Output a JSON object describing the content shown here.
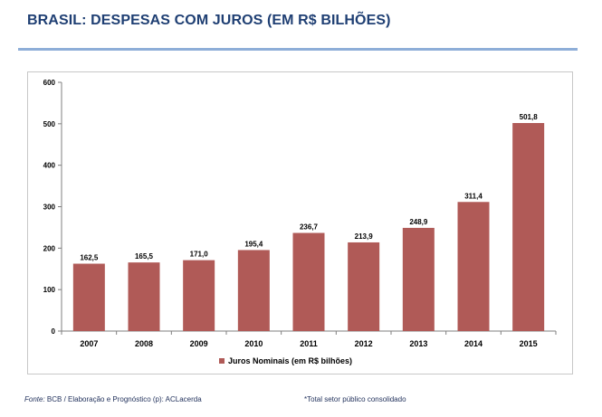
{
  "page": {
    "title": "BRASIL: DESPESAS COM JUROS (EM R$ BILHÕES)",
    "source_prefix": "Fonte:",
    "source_text": " BCB / Elaboração  e Prognóstico (p): ACLacerda",
    "note": "*Total  setor público consolidado"
  },
  "colors": {
    "title": "#1f3f73",
    "rule": "#8eaed8",
    "bar": "#b05a57"
  },
  "chart_data": {
    "type": "bar",
    "categories": [
      "2007",
      "2008",
      "2009",
      "2010",
      "2011",
      "2012",
      "2013",
      "2014",
      "2015"
    ],
    "series": [
      {
        "name": "Juros Nominais (em R$ bilhões)",
        "values": [
          162.5,
          165.5,
          171.0,
          195.4,
          236.7,
          213.9,
          248.9,
          311.4,
          501.8
        ],
        "labels": [
          "162,5",
          "165,5",
          "171,0",
          "195,4",
          "236,7",
          "213,9",
          "248,9",
          "311,4",
          "501,8"
        ]
      }
    ],
    "yticks": [
      0,
      100,
      200,
      300,
      400,
      500,
      600
    ],
    "ylim": [
      0,
      600
    ],
    "grid": false,
    "legend": "bottom-center"
  }
}
